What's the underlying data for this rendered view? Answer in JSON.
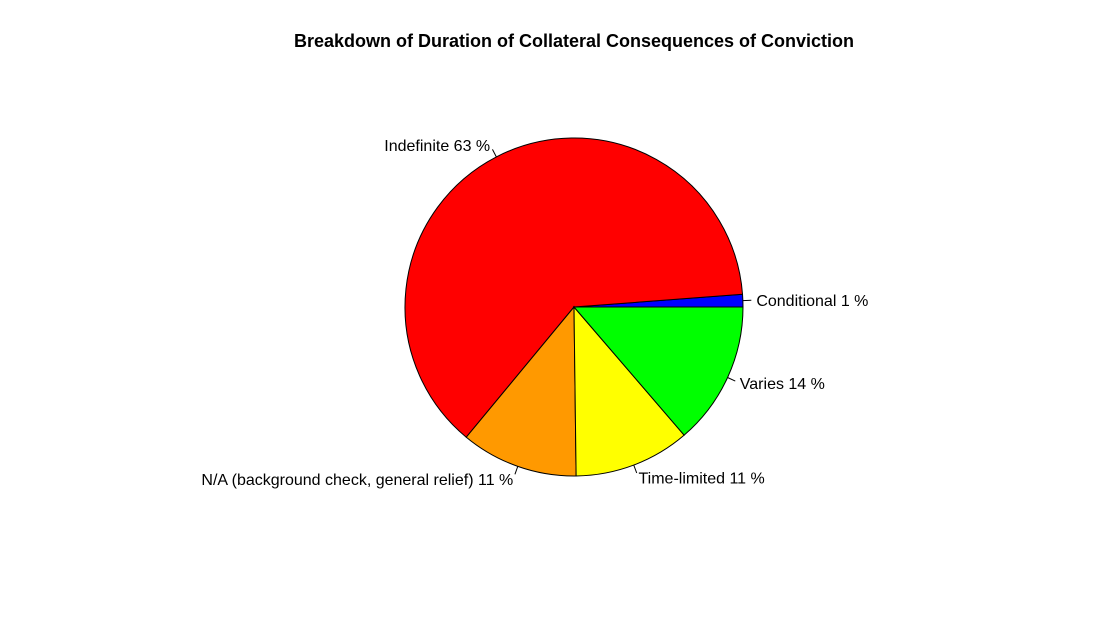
{
  "chart_data": {
    "type": "pie",
    "title": "Breakdown of Duration of Collateral Consequences of Conviction",
    "slices": [
      {
        "label": "Conditional 1 %",
        "value": 1.2,
        "color": "#0000ff"
      },
      {
        "label": "Indefinite 63 %",
        "value": 62.8,
        "color": "#ff0000"
      },
      {
        "label": "N/A (background check, general relief) 11 %",
        "value": 11.2,
        "color": "#ff9900"
      },
      {
        "label": "Time-limited 11 %",
        "value": 11.1,
        "color": "#ffff00"
      },
      {
        "label": "Varies 14 %",
        "value": 13.7,
        "color": "#00ff00"
      }
    ],
    "start_angle_deg": 0,
    "direction": "counterclockwise"
  }
}
